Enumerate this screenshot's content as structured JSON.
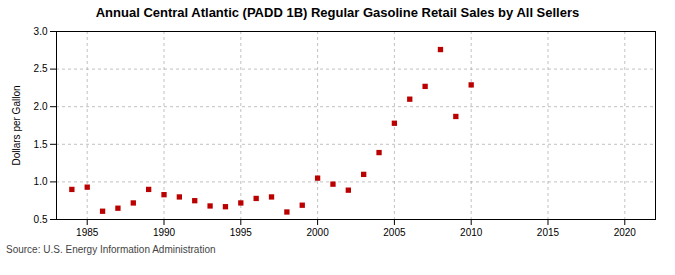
{
  "chart_data": {
    "type": "scatter",
    "title": "Annual Central Atlantic (PADD 1B) Regular Gasoline Retail Sales by All Sellers",
    "ylabel": "Dollars per Gallon",
    "source": "Source: U.S. Energy Information Administration",
    "x": [
      1984,
      1985,
      1986,
      1987,
      1988,
      1989,
      1990,
      1991,
      1992,
      1993,
      1994,
      1995,
      1996,
      1997,
      1998,
      1999,
      2000,
      2001,
      2002,
      2003,
      2004,
      2005,
      2006,
      2007,
      2008,
      2009,
      2010
    ],
    "values": [
      0.9,
      0.93,
      0.61,
      0.65,
      0.72,
      0.9,
      0.83,
      0.8,
      0.75,
      0.68,
      0.67,
      0.72,
      0.78,
      0.8,
      0.6,
      0.69,
      1.05,
      0.97,
      0.89,
      1.1,
      1.39,
      1.78,
      2.1,
      2.27,
      2.76,
      1.87,
      2.29
    ],
    "color": "#bb0000",
    "marker": "square",
    "xlim": [
      1983,
      2022
    ],
    "ylim": [
      0.5,
      3.0
    ],
    "xticks": [
      1985,
      1990,
      1995,
      2000,
      2005,
      2010,
      2015,
      2020
    ],
    "yticks": [
      0.5,
      {
        "value": 1,
        "label": "1.0"
      },
      1.5,
      {
        "value": 2,
        "label": "2.0"
      },
      2.5,
      {
        "value": 3,
        "label": "3.0"
      }
    ],
    "grid": true
  }
}
